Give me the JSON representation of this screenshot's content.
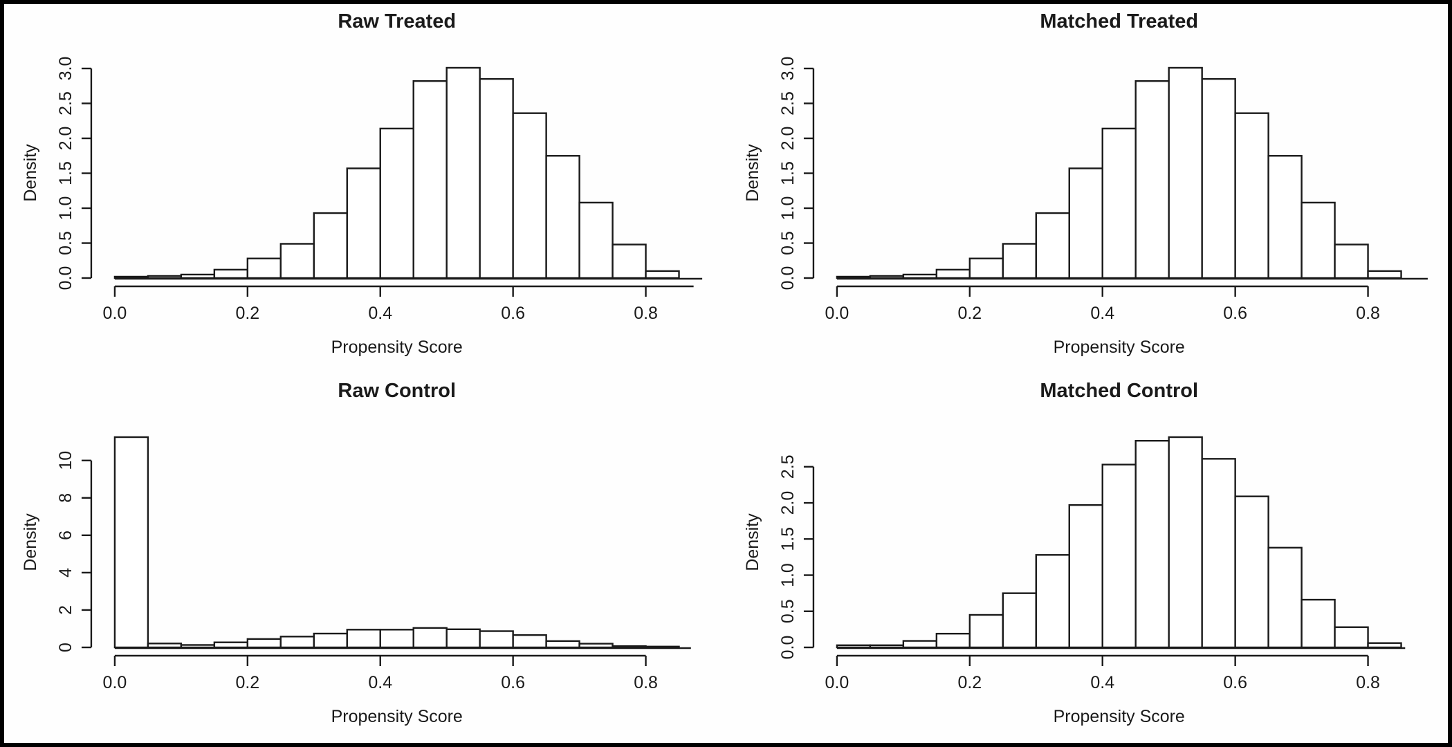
{
  "figure": {
    "background": "#fefefe",
    "frame_color": "#000000",
    "ink_color": "#1a1a1a",
    "bar_fill": "#ffffff"
  },
  "chart_data": [
    {
      "type": "bar",
      "title": "Raw Treated",
      "xlabel": "Propensity Score",
      "ylabel": "Density",
      "bin_start": 0,
      "bin_width": 0.05,
      "values": [
        0.02,
        0.03,
        0.05,
        0.12,
        0.28,
        0.49,
        0.93,
        1.57,
        2.14,
        2.82,
        3.01,
        2.85,
        2.36,
        1.75,
        1.08,
        0.48,
        0.1
      ],
      "x_tick_values": [
        0.0,
        0.2,
        0.4,
        0.6,
        0.8
      ],
      "x_tick_labels": [
        "0.0",
        "0.2",
        "0.4",
        "0.6",
        "0.8"
      ],
      "y_tick_values": [
        0.0,
        0.5,
        1.0,
        1.5,
        2.0,
        2.5,
        3.0
      ],
      "y_tick_labels": [
        "0.0",
        "0.5",
        "1.0",
        "1.5",
        "2.0",
        "2.5",
        "3.0"
      ],
      "ylim": [
        0,
        3.01
      ],
      "xlim": [
        0,
        0.885
      ],
      "axis_line_end": 0.872,
      "baseline_end": 0.885,
      "grid": false,
      "legend": null
    },
    {
      "type": "bar",
      "title": "Matched Treated",
      "xlabel": "Propensity Score",
      "ylabel": "Density",
      "bin_start": 0,
      "bin_width": 0.05,
      "values": [
        0.02,
        0.03,
        0.05,
        0.12,
        0.28,
        0.49,
        0.93,
        1.57,
        2.14,
        2.82,
        3.01,
        2.85,
        2.36,
        1.75,
        1.08,
        0.48,
        0.1
      ],
      "x_tick_values": [
        0.0,
        0.2,
        0.4,
        0.6,
        0.8
      ],
      "x_tick_labels": [
        "0.0",
        "0.2",
        "0.4",
        "0.6",
        "0.8"
      ],
      "y_tick_values": [
        0.0,
        0.5,
        1.0,
        1.5,
        2.0,
        2.5,
        3.0
      ],
      "y_tick_labels": [
        "0.0",
        "0.5",
        "1.0",
        "1.5",
        "2.0",
        "2.5",
        "3.0"
      ],
      "ylim": [
        0,
        3.01
      ],
      "xlim": [
        0,
        0.89
      ],
      "axis_line_end": 0.8,
      "baseline_end": 0.89,
      "grid": false,
      "legend": null
    },
    {
      "type": "bar",
      "title": "Raw Control",
      "xlabel": "Propensity Score",
      "ylabel": "Density",
      "bin_start": 0,
      "bin_width": 0.05,
      "values": [
        11.25,
        0.21,
        0.13,
        0.27,
        0.45,
        0.58,
        0.74,
        0.95,
        0.95,
        1.04,
        0.97,
        0.87,
        0.66,
        0.34,
        0.2,
        0.07,
        0.02
      ],
      "x_tick_values": [
        0.0,
        0.2,
        0.4,
        0.6,
        0.8
      ],
      "x_tick_labels": [
        "0.0",
        "0.2",
        "0.4",
        "0.6",
        "0.8"
      ],
      "y_tick_values": [
        0,
        2,
        4,
        6,
        8,
        10
      ],
      "y_tick_labels": [
        "0",
        "2",
        "4",
        "6",
        "8",
        "10"
      ],
      "ylim": [
        0,
        11.25
      ],
      "xlim": [
        0,
        0.868
      ],
      "axis_line_end": 0.8,
      "baseline_end": 0.868,
      "grid": false,
      "legend": null
    },
    {
      "type": "bar",
      "title": "Matched Control",
      "xlabel": "Propensity Score",
      "ylabel": "Density",
      "bin_start": 0,
      "bin_width": 0.05,
      "values": [
        0.03,
        0.03,
        0.09,
        0.19,
        0.45,
        0.75,
        1.28,
        1.97,
        2.53,
        2.86,
        2.91,
        2.61,
        2.09,
        1.38,
        0.66,
        0.28,
        0.06
      ],
      "x_tick_values": [
        0.0,
        0.2,
        0.4,
        0.6,
        0.8
      ],
      "x_tick_labels": [
        "0.0",
        "0.2",
        "0.4",
        "0.6",
        "0.8"
      ],
      "y_tick_values": [
        0.0,
        0.5,
        1.0,
        1.5,
        2.0,
        2.5
      ],
      "y_tick_labels": [
        "0.0",
        "0.5",
        "1.0",
        "1.5",
        "2.0",
        "2.5"
      ],
      "ylim": [
        0,
        2.91
      ],
      "xlim": [
        0,
        0.856
      ],
      "axis_line_end": 0.8,
      "baseline_end": 0.856,
      "grid": false,
      "legend": null
    }
  ]
}
